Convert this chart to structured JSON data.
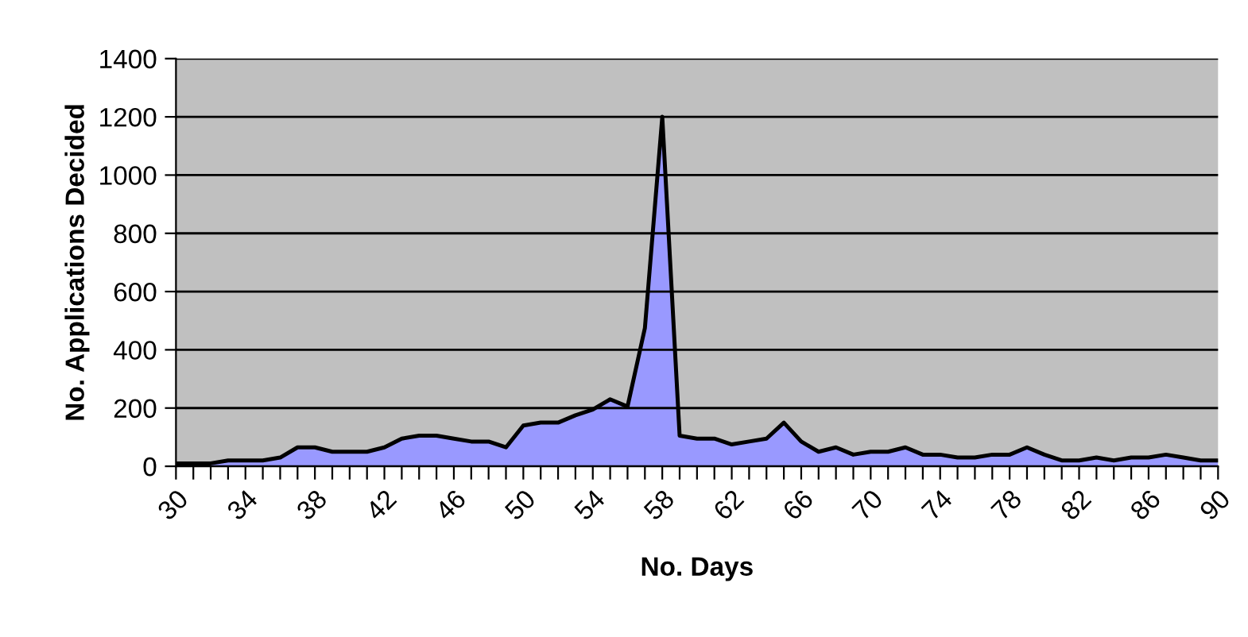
{
  "chart_data": {
    "type": "area",
    "xlabel": "No. Days",
    "ylabel": "No. Applications Decided",
    "categories": [
      "30",
      null,
      null,
      null,
      "34",
      null,
      null,
      null,
      "38",
      null,
      null,
      null,
      "42",
      null,
      null,
      null,
      "46",
      null,
      null,
      null,
      "50",
      null,
      null,
      null,
      "54",
      null,
      null,
      null,
      "58",
      null,
      null,
      null,
      "62",
      null,
      null,
      null,
      "66",
      null,
      null,
      null,
      "70",
      null,
      null,
      null,
      "74",
      null,
      null,
      null,
      "78",
      null,
      null,
      null,
      "82",
      null,
      null,
      null,
      "86",
      null,
      null,
      null,
      "90"
    ],
    "series": [
      {
        "color": "#9999ff",
        "values": [
          10,
          10,
          10,
          20,
          20,
          20,
          30,
          65,
          65,
          50,
          50,
          50,
          65,
          95,
          105,
          105,
          95,
          85,
          85,
          65,
          140,
          150,
          150,
          175,
          195,
          230,
          205,
          475,
          1200,
          105,
          95,
          95,
          75,
          85,
          95,
          150,
          85,
          50,
          65,
          40,
          50,
          50,
          65,
          40,
          40,
          30,
          30,
          40,
          40,
          65,
          40,
          20,
          20,
          30,
          20,
          30,
          30,
          40,
          30,
          20,
          20
        ]
      }
    ],
    "ylim": [
      0,
      1400
    ],
    "yticks": [
      0,
      200,
      400,
      600,
      800,
      1000,
      1200,
      1400
    ],
    "grid": "y"
  }
}
